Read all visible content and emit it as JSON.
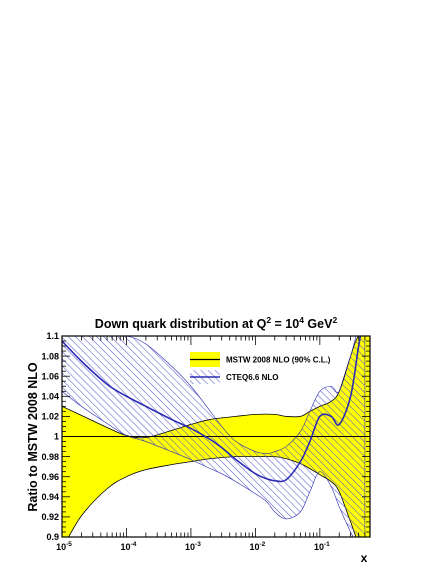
{
  "chart_data": {
    "type": "area",
    "title": {
      "main": "Down quark distribution at Q",
      "q_exp": "2",
      "eq": " = 10",
      "ten_exp": "4",
      "unit": " GeV",
      "unit_exp": "2"
    },
    "xlabel": "x",
    "ylabel": "Ratio to MSTW 2008 NLO",
    "x_scale": "log",
    "xlim": [
      1e-05,
      0.6
    ],
    "ylim": [
      0.9,
      1.1
    ],
    "y_ticks": [
      "0.9",
      "0.92",
      "0.94",
      "0.96",
      "0.98",
      "1",
      "1.02",
      "1.04",
      "1.06",
      "1.08",
      "1.1"
    ],
    "x_ticks": [
      {
        "base": "10",
        "exp": "-5",
        "value": 1e-05
      },
      {
        "base": "10",
        "exp": "-4",
        "value": 0.0001
      },
      {
        "base": "10",
        "exp": "-3",
        "value": 0.001
      },
      {
        "base": "10",
        "exp": "-2",
        "value": 0.01
      },
      {
        "base": "10",
        "exp": "-1",
        "value": 0.1
      }
    ],
    "reference_line": 1.0,
    "legend": {
      "placement": "top-right",
      "entries": [
        "MSTW 2008 NLO (90% C.L.)",
        "CTEQ6.6 NLO"
      ]
    },
    "colors": {
      "mstw_band": "#ffff00",
      "cteq_line": "#2b2bb5",
      "cteq_hatch": "#5a5ad0",
      "frame": "#000000"
    },
    "series": [
      {
        "name": "MSTW 2008 NLO (90% C.L.)",
        "style": "filled-band",
        "x": [
          1e-05,
          2e-05,
          5e-05,
          0.0001,
          0.0002,
          0.0005,
          0.001,
          0.002,
          0.005,
          0.01,
          0.02,
          0.03,
          0.05,
          0.07,
          0.1,
          0.15,
          0.2,
          0.3,
          0.4,
          0.6
        ],
        "upper": [
          1.03,
          1.021,
          1.009,
          1.001,
          0.999,
          1.006,
          1.012,
          1.017,
          1.02,
          1.022,
          1.022,
          1.02,
          1.02,
          1.025,
          1.03,
          1.035,
          1.045,
          1.08,
          1.1,
          1.1
        ],
        "lower": [
          0.888,
          0.921,
          0.948,
          0.96,
          0.967,
          0.972,
          0.975,
          0.978,
          0.98,
          0.98,
          0.98,
          0.978,
          0.973,
          0.968,
          0.962,
          0.955,
          0.945,
          0.915,
          0.895,
          0.89
        ]
      },
      {
        "name": "CTEQ6.6 NLO",
        "style": "hatched-band",
        "x": [
          1e-05,
          2e-05,
          5e-05,
          0.0001,
          0.0002,
          0.0005,
          0.001,
          0.002,
          0.003,
          0.005,
          0.01,
          0.015,
          0.02,
          0.03,
          0.05,
          0.07,
          0.1,
          0.15,
          0.2,
          0.3,
          0.4,
          0.5
        ],
        "central": [
          1.095,
          1.075,
          1.052,
          1.04,
          1.03,
          1.017,
          1.008,
          0.997,
          0.989,
          0.977,
          0.963,
          0.958,
          0.956,
          0.957,
          0.975,
          0.995,
          1.02,
          1.02,
          1.012,
          1.04,
          1.09,
          1.125
        ],
        "upper": [
          1.1,
          1.1,
          1.1,
          1.1,
          1.092,
          1.07,
          1.05,
          1.025,
          1.01,
          0.995,
          0.985,
          0.983,
          0.985,
          0.99,
          1.005,
          1.025,
          1.045,
          1.05,
          1.045,
          1.08,
          1.11,
          1.13
        ],
        "lower": [
          1.045,
          1.03,
          1.013,
          1.001,
          0.995,
          0.985,
          0.977,
          0.968,
          0.963,
          0.955,
          0.943,
          0.935,
          0.925,
          0.918,
          0.925,
          0.945,
          0.965,
          0.95,
          0.93,
          0.905,
          0.89,
          0.89
        ]
      }
    ]
  }
}
